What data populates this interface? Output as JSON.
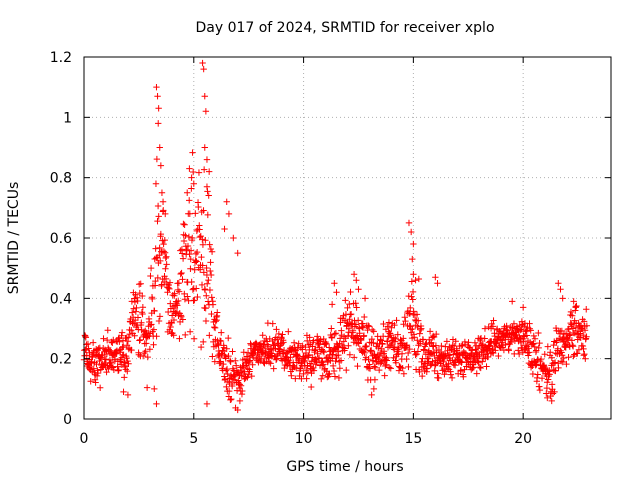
{
  "chart_data": {
    "type": "scatter",
    "title": "Day 017 of 2024, SRMTID for receiver xplo",
    "xlabel": "GPS time / hours",
    "ylabel": "SRMTID / TECUs",
    "xlim": [
      0,
      24
    ],
    "ylim": [
      0,
      1.2
    ],
    "xticks": [
      0,
      5,
      10,
      15,
      20
    ],
    "xtick_labels": [
      "0",
      "5",
      "10",
      "15",
      "20"
    ],
    "yticks": [
      0,
      0.2,
      0.4,
      0.6,
      0.8,
      1.0,
      1.2
    ],
    "ytick_labels": [
      "0",
      "0.2",
      "0.4",
      "0.6",
      "0.8",
      "1",
      "1.2"
    ],
    "grid": true,
    "marker": "plus",
    "series": [
      {
        "name": "SRMTID",
        "color": "#ff0000",
        "profile_hours": [
          0,
          0.3,
          0.7,
          1.0,
          1.5,
          2.0,
          2.3,
          2.6,
          3.0,
          3.2,
          3.4,
          3.6,
          3.8,
          4.0,
          4.3,
          4.6,
          4.9,
          5.1,
          5.3,
          5.5,
          5.7,
          5.9,
          6.1,
          6.3,
          6.6,
          6.9,
          7.2,
          7.6,
          8.0,
          8.5,
          9.0,
          9.5,
          10.0,
          10.5,
          11.0,
          11.5,
          12.0,
          12.4,
          12.8,
          13.2,
          13.6,
          14.0,
          14.5,
          14.9,
          15.1,
          15.4,
          15.8,
          16.3,
          17.0,
          17.5,
          18.0,
          18.5,
          19.0,
          19.5,
          20.0,
          20.4,
          20.8,
          21.2,
          21.6,
          22.0,
          22.4,
          22.8
        ],
        "profile_center": [
          0.26,
          0.2,
          0.18,
          0.21,
          0.21,
          0.22,
          0.36,
          0.32,
          0.26,
          0.45,
          0.62,
          0.55,
          0.4,
          0.34,
          0.4,
          0.52,
          0.62,
          0.55,
          0.6,
          0.56,
          0.48,
          0.33,
          0.26,
          0.2,
          0.14,
          0.13,
          0.15,
          0.2,
          0.22,
          0.24,
          0.22,
          0.2,
          0.19,
          0.22,
          0.21,
          0.23,
          0.28,
          0.3,
          0.24,
          0.22,
          0.23,
          0.24,
          0.24,
          0.3,
          0.32,
          0.23,
          0.21,
          0.2,
          0.2,
          0.21,
          0.22,
          0.24,
          0.26,
          0.28,
          0.28,
          0.22,
          0.16,
          0.14,
          0.23,
          0.26,
          0.3,
          0.27
        ],
        "profile_spread": [
          0.07,
          0.06,
          0.06,
          0.06,
          0.06,
          0.07,
          0.1,
          0.1,
          0.12,
          0.22,
          0.3,
          0.25,
          0.12,
          0.06,
          0.12,
          0.22,
          0.28,
          0.25,
          0.3,
          0.32,
          0.22,
          0.15,
          0.1,
          0.07,
          0.08,
          0.07,
          0.06,
          0.06,
          0.06,
          0.06,
          0.06,
          0.06,
          0.06,
          0.07,
          0.07,
          0.09,
          0.12,
          0.12,
          0.08,
          0.07,
          0.07,
          0.07,
          0.07,
          0.12,
          0.18,
          0.08,
          0.07,
          0.06,
          0.06,
          0.06,
          0.06,
          0.06,
          0.05,
          0.05,
          0.06,
          0.08,
          0.08,
          0.08,
          0.09,
          0.07,
          0.08,
          0.06
        ],
        "highlights": [
          [
            3.3,
            1.1
          ],
          [
            3.35,
            1.07
          ],
          [
            3.4,
            1.03
          ],
          [
            3.38,
            0.98
          ],
          [
            3.45,
            0.9
          ],
          [
            3.5,
            0.84
          ],
          [
            3.55,
            0.75
          ],
          [
            3.6,
            0.72
          ],
          [
            3.7,
            0.68
          ],
          [
            5.4,
            1.18
          ],
          [
            5.45,
            1.16
          ],
          [
            5.5,
            1.07
          ],
          [
            5.55,
            1.02
          ],
          [
            5.5,
            0.9
          ],
          [
            5.6,
            0.86
          ],
          [
            5.7,
            0.82
          ],
          [
            5.6,
            0.77
          ],
          [
            4.8,
            0.83
          ],
          [
            4.9,
            0.8
          ],
          [
            5.0,
            0.78
          ],
          [
            4.7,
            0.75
          ],
          [
            6.5,
            0.72
          ],
          [
            6.6,
            0.68
          ],
          [
            6.4,
            0.63
          ],
          [
            6.8,
            0.6
          ],
          [
            7.0,
            0.55
          ],
          [
            3.3,
            0.05
          ],
          [
            3.2,
            0.1
          ],
          [
            5.6,
            0.05
          ],
          [
            7.0,
            0.03
          ],
          [
            7.1,
            0.06
          ],
          [
            2.0,
            0.08
          ],
          [
            1.8,
            0.09
          ],
          [
            11.4,
            0.45
          ],
          [
            11.5,
            0.42
          ],
          [
            11.3,
            0.38
          ],
          [
            12.3,
            0.48
          ],
          [
            12.4,
            0.46
          ],
          [
            12.5,
            0.43
          ],
          [
            12.8,
            0.4
          ],
          [
            14.8,
            0.65
          ],
          [
            14.9,
            0.62
          ],
          [
            15.0,
            0.58
          ],
          [
            14.95,
            0.53
          ],
          [
            15.0,
            0.48
          ],
          [
            15.1,
            0.46
          ],
          [
            16.0,
            0.47
          ],
          [
            16.1,
            0.45
          ],
          [
            13.1,
            0.08
          ],
          [
            13.2,
            0.1
          ],
          [
            21.1,
            0.07
          ],
          [
            21.3,
            0.06
          ],
          [
            21.6,
            0.45
          ],
          [
            21.7,
            0.43
          ],
          [
            21.8,
            0.4
          ],
          [
            22.3,
            0.39
          ],
          [
            22.4,
            0.37
          ],
          [
            19.5,
            0.39
          ],
          [
            20.0,
            0.37
          ]
        ],
        "x_max": 22.9,
        "point_count": 1650
      }
    ]
  }
}
